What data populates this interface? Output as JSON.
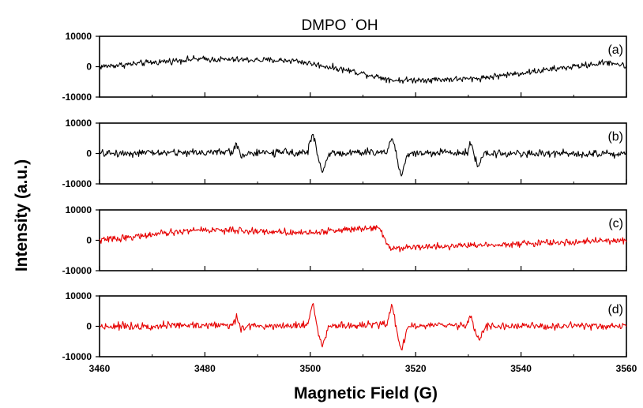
{
  "chart_data": {
    "type": "line",
    "title": "DMPO   ˙OH",
    "xlabel": "Magnetic Field (G)",
    "ylabel": "Intensity (a.u.)",
    "xlim": [
      3460,
      3560
    ],
    "ylim": [
      -10000,
      10000
    ],
    "x_ticks": [
      3460,
      3480,
      3500,
      3520,
      3540,
      3560
    ],
    "x_tick_labels": [
      "3460",
      "3480",
      "3500",
      "3520",
      "3540",
      "3560"
    ],
    "y_ticks": [
      10000,
      0,
      -10000
    ],
    "y_tick_labels": [
      "10000",
      "0",
      "-10000"
    ],
    "grid": false,
    "legend": "none",
    "panels": [
      {
        "label": "(a)",
        "color": "#000000",
        "noise_amplitude": 1500,
        "points": [
          [
            3460,
            0
          ],
          [
            3478,
            2500
          ],
          [
            3497,
            2000
          ],
          [
            3508,
            -1500
          ],
          [
            3516,
            -4500
          ],
          [
            3531,
            -4000
          ],
          [
            3557,
            1500
          ],
          [
            3560,
            0
          ]
        ]
      },
      {
        "label": "(b)",
        "color": "#000000",
        "noise_amplitude": 1800,
        "points": [
          [
            3460,
            0
          ],
          [
            3485.3,
            500
          ],
          [
            3486,
            3500
          ],
          [
            3486.8,
            -800
          ],
          [
            3488,
            0
          ],
          [
            3499.5,
            500
          ],
          [
            3500.5,
            7000
          ],
          [
            3501.5,
            -2000
          ],
          [
            3502.3,
            -6000
          ],
          [
            3503.5,
            0
          ],
          [
            3514.5,
            500
          ],
          [
            3515.5,
            5500
          ],
          [
            3516.5,
            -1500
          ],
          [
            3517.3,
            -7500
          ],
          [
            3518.5,
            0
          ],
          [
            3529.8,
            500
          ],
          [
            3530.5,
            4000
          ],
          [
            3531.2,
            -1500
          ],
          [
            3532,
            -4000
          ],
          [
            3533.2,
            0
          ],
          [
            3560,
            0
          ]
        ]
      },
      {
        "label": "(c)",
        "color": "#e60000",
        "noise_amplitude": 1600,
        "points": [
          [
            3460,
            0
          ],
          [
            3479,
            3500
          ],
          [
            3500,
            2500
          ],
          [
            3513,
            4500
          ],
          [
            3515,
            -2500
          ],
          [
            3560,
            0
          ]
        ]
      },
      {
        "label": "(d)",
        "color": "#e60000",
        "noise_amplitude": 1800,
        "points": [
          [
            3460,
            0
          ],
          [
            3485.3,
            500
          ],
          [
            3486,
            3000
          ],
          [
            3486.8,
            -800
          ],
          [
            3488,
            0
          ],
          [
            3499.5,
            500
          ],
          [
            3500.5,
            8000
          ],
          [
            3501.5,
            -2000
          ],
          [
            3502.3,
            -6500
          ],
          [
            3503.5,
            0
          ],
          [
            3514.5,
            500
          ],
          [
            3515.5,
            7500
          ],
          [
            3516.5,
            -2000
          ],
          [
            3517.3,
            -8000
          ],
          [
            3518.5,
            0
          ],
          [
            3529.8,
            500
          ],
          [
            3530.5,
            4000
          ],
          [
            3531.2,
            -1500
          ],
          [
            3532,
            -4500
          ],
          [
            3533.2,
            0
          ],
          [
            3560,
            0
          ]
        ]
      }
    ]
  }
}
